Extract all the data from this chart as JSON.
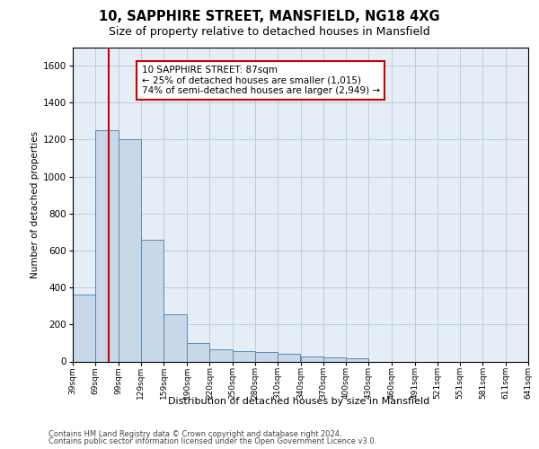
{
  "title_line1": "10, SAPPHIRE STREET, MANSFIELD, NG18 4XG",
  "title_line2": "Size of property relative to detached houses in Mansfield",
  "xlabel": "Distribution of detached houses by size in Mansfield",
  "ylabel": "Number of detached properties",
  "footer_line1": "Contains HM Land Registry data © Crown copyright and database right 2024.",
  "footer_line2": "Contains public sector information licensed under the Open Government Licence v3.0.",
  "annotation_line1": "10 SAPPHIRE STREET: 87sqm",
  "annotation_line2": "← 25% of detached houses are smaller (1,015)",
  "annotation_line3": "74% of semi-detached houses are larger (2,949) →",
  "bar_color": "#c8d8e8",
  "bar_edge_color": "#5b8ab5",
  "vline_color": "#cc0000",
  "vline_x": 87,
  "background_color": "#e5eef6",
  "ylim": [
    0,
    1700
  ],
  "yticks": [
    0,
    200,
    400,
    600,
    800,
    1000,
    1200,
    1400,
    1600
  ],
  "bin_edges": [
    39,
    69,
    99,
    129,
    159,
    190,
    220,
    250,
    280,
    310,
    340,
    370,
    400,
    430,
    460,
    491,
    521,
    551,
    581,
    611,
    641
  ],
  "bar_heights": [
    360,
    1250,
    1200,
    660,
    255,
    100,
    68,
    58,
    50,
    42,
    28,
    20,
    15,
    0,
    0,
    0,
    0,
    0,
    0,
    0
  ],
  "tick_labels": [
    "39sqm",
    "69sqm",
    "99sqm",
    "129sqm",
    "159sqm",
    "190sqm",
    "220sqm",
    "250sqm",
    "280sqm",
    "310sqm",
    "340sqm",
    "370sqm",
    "400sqm",
    "430sqm",
    "460sqm",
    "491sqm",
    "521sqm",
    "551sqm",
    "581sqm",
    "611sqm",
    "641sqm"
  ]
}
